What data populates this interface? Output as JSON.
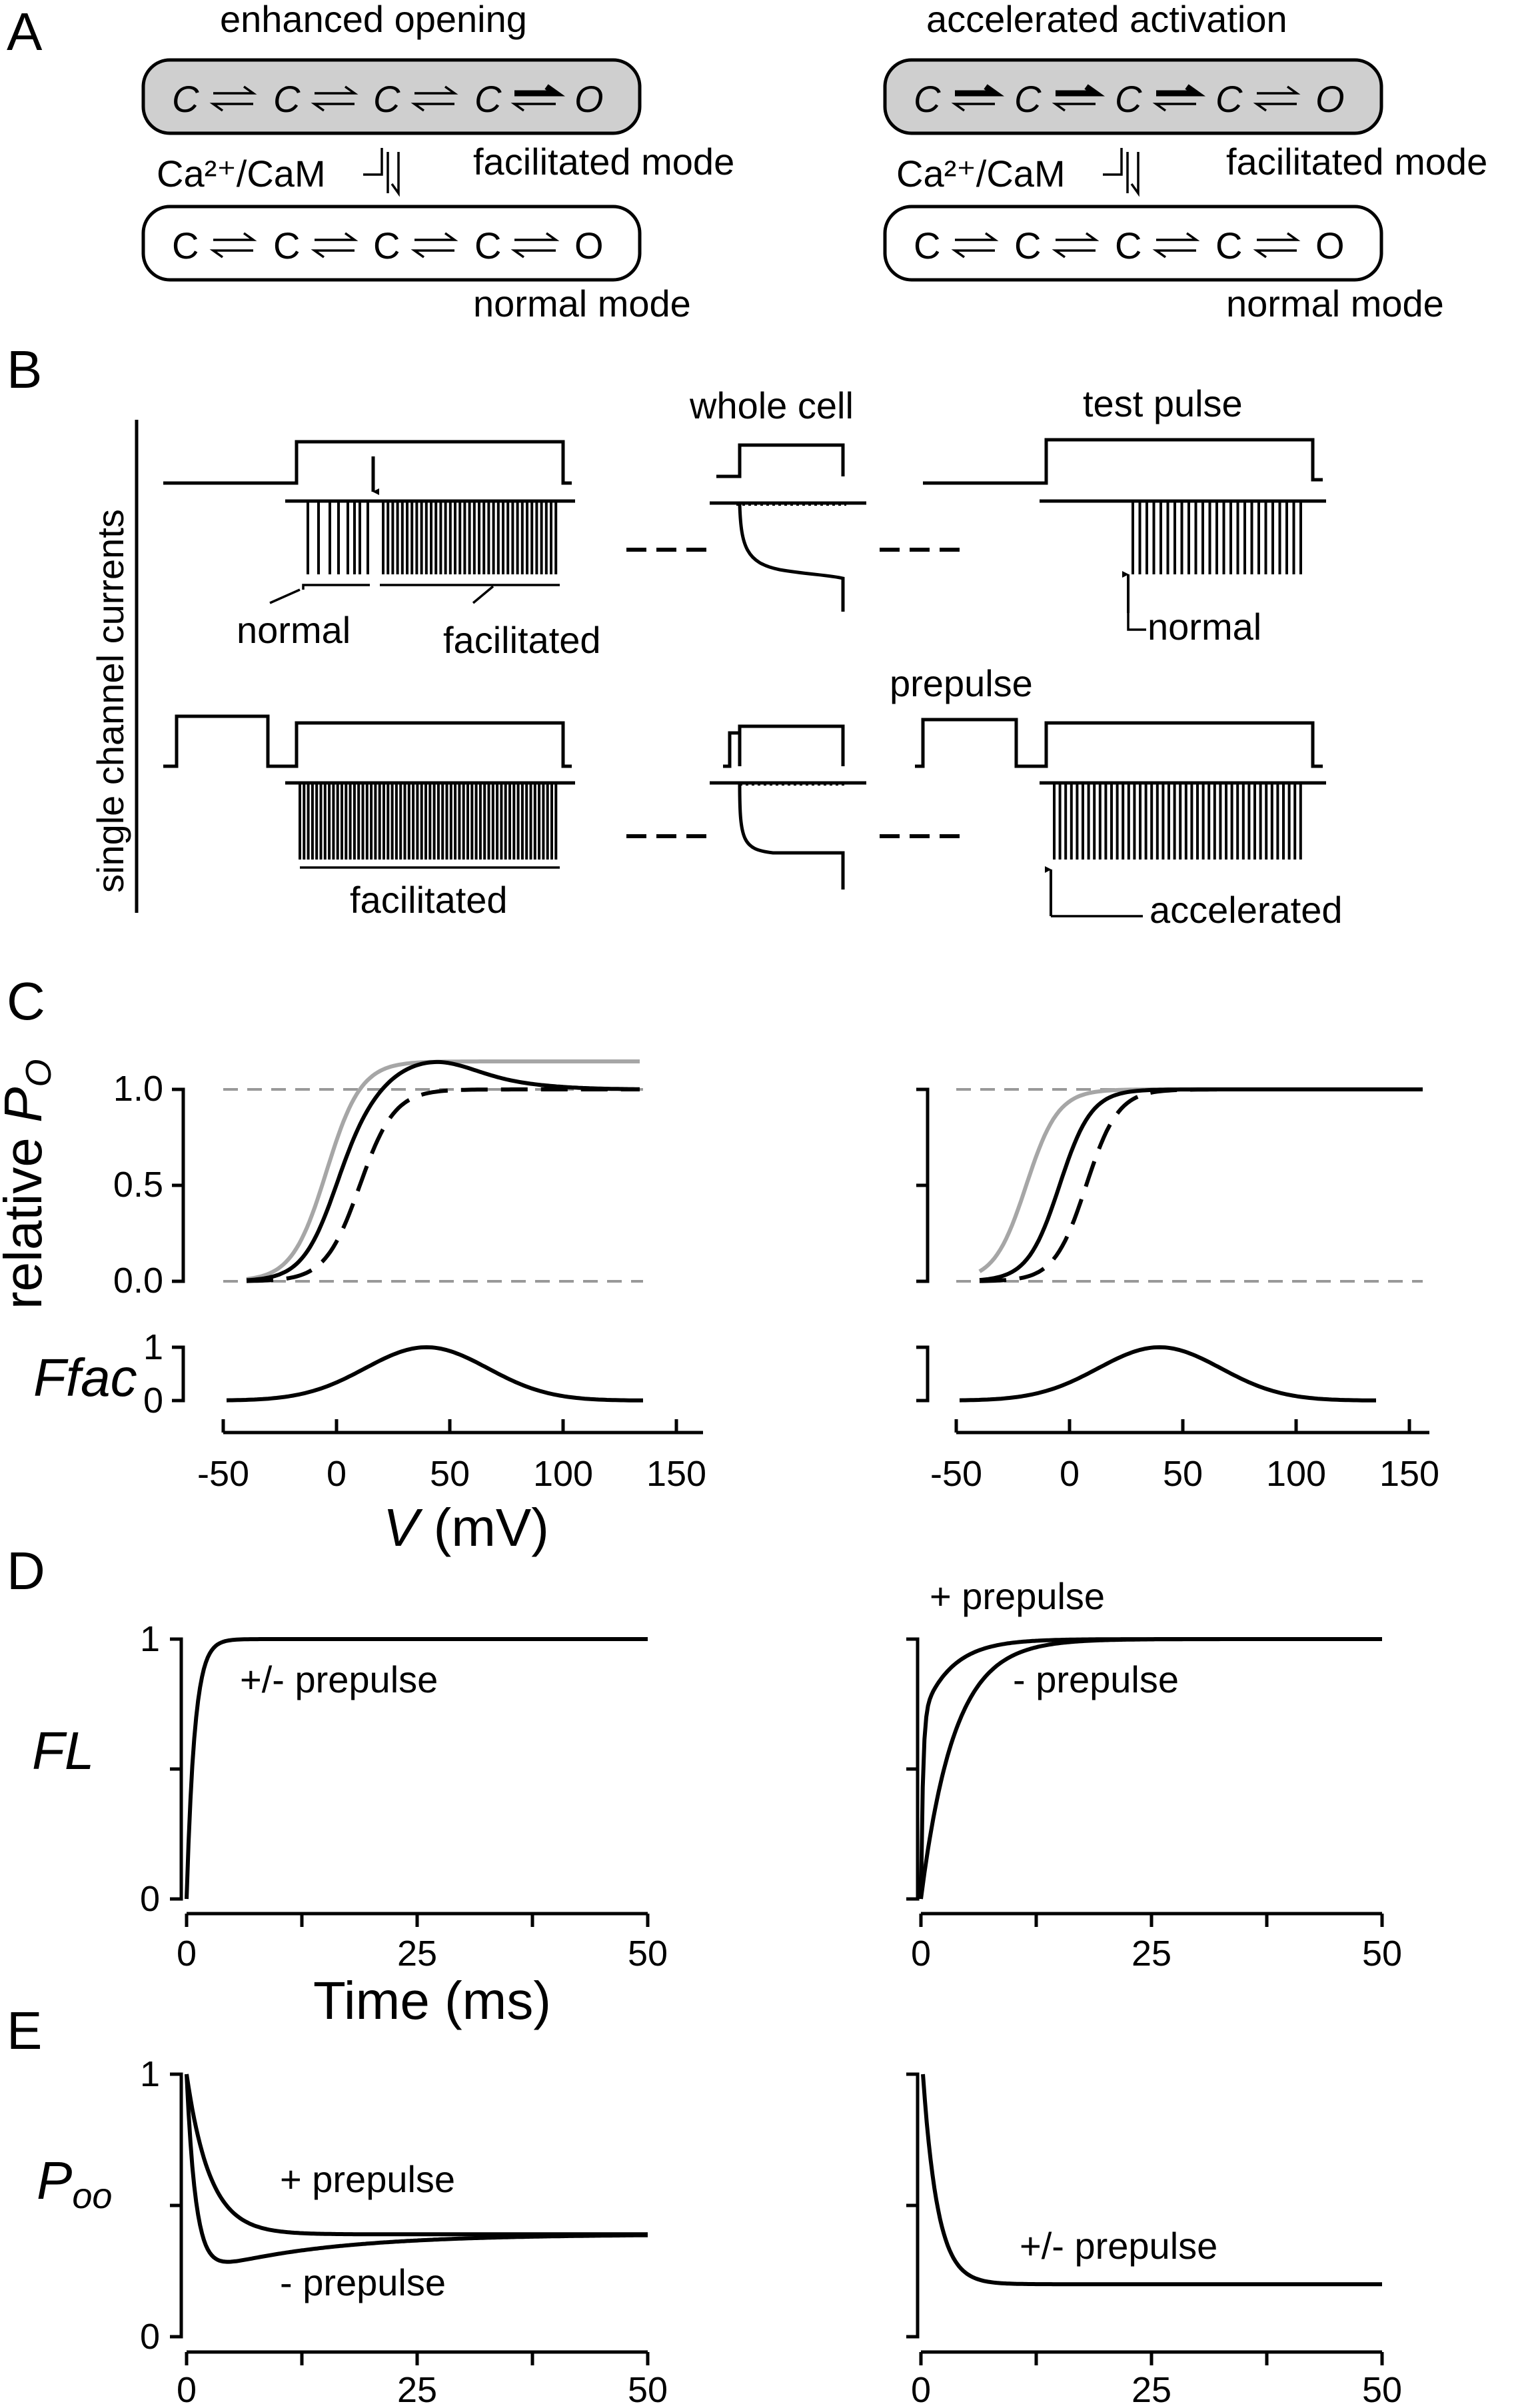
{
  "panels": {
    "A": "A",
    "B": "B",
    "C": "C",
    "D": "D",
    "E": "E"
  },
  "panel_a": {
    "left_title": "enhanced opening",
    "right_title": "accelerated activation",
    "ca_cam": "Ca²⁺/CaM",
    "facilitated_mode": "facilitated mode",
    "normal_mode": "normal mode",
    "state_c": "C",
    "state_o": "O"
  },
  "panel_b": {
    "y_label": "single channel currents",
    "whole_cell": "whole cell",
    "test_pulse": "test pulse",
    "prepulse": "prepulse",
    "normal": "normal",
    "facilitated": "facilitated",
    "accelerated": "accelerated"
  },
  "panel_c": {
    "ylabel_main": "relative ",
    "ylabel_sym": "P",
    "ylabel_sub": "O",
    "ffac_label": "Ffac",
    "xlabel_v": "V",
    "xlabel_unit": " (mV)",
    "y_ticks": [
      "1.0",
      "0.5",
      "0.0"
    ],
    "ffac_ticks": [
      "1",
      "0"
    ],
    "x_ticks": [
      "-50",
      "0",
      "50",
      "100",
      "150"
    ]
  },
  "panel_d": {
    "ylabel": "FL",
    "y_ticks": [
      "1",
      "0"
    ],
    "x_ticks": [
      "0",
      "25",
      "50"
    ],
    "xlabel": "Time (ms)",
    "left_annot": "+/- prepulse",
    "right_plus": "+ prepulse",
    "right_minus": "- prepulse"
  },
  "panel_e": {
    "ylabel_sym": "P",
    "ylabel_sub": "oo",
    "y_ticks": [
      "1",
      "0"
    ],
    "x_ticks": [
      "0",
      "25",
      "50"
    ],
    "left_plus": "+ prepulse",
    "left_minus": "- prepulse",
    "right_annot": "+/- prepulse"
  }
}
